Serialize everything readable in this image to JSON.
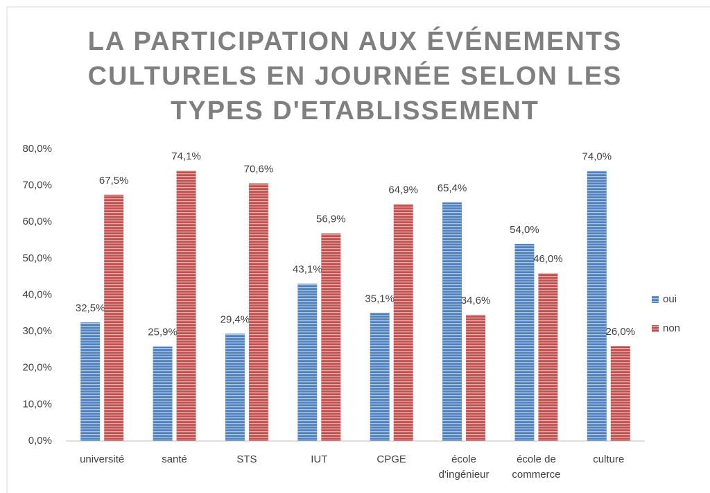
{
  "chart_data": {
    "type": "bar",
    "title": [
      "LA PARTICIPATION AUX ÉVÉNEMENTS",
      "CULTURELS EN JOURNÉE SELON LES",
      "TYPES D'ETABLISSEMENT"
    ],
    "categories": [
      "université",
      "santé",
      "STS",
      "IUT",
      "CPGE",
      "école d'ingénieur",
      "école de commerce",
      "culture"
    ],
    "series": [
      {
        "name": "oui",
        "color": "#4f81bd",
        "values": [
          32.5,
          25.9,
          29.4,
          43.1,
          35.1,
          65.4,
          54.0,
          74.0
        ],
        "value_labels": [
          "32,5%",
          "25,9%",
          "29,4%",
          "43,1%",
          "35,1%",
          "65,4%",
          "54,0%",
          "74,0%"
        ]
      },
      {
        "name": "non",
        "color": "#c0504d",
        "values": [
          67.5,
          74.1,
          70.6,
          56.9,
          64.9,
          34.6,
          46.0,
          26.0
        ],
        "value_labels": [
          "67,5%",
          "74,1%",
          "70,6%",
          "56,9%",
          "64,9%",
          "34,6%",
          "46,0%",
          "26,0%"
        ]
      }
    ],
    "ylim": [
      0,
      80
    ],
    "yticks": [
      {
        "value": 0,
        "label": "0,0%"
      },
      {
        "value": 10,
        "label": "10,0%"
      },
      {
        "value": 20,
        "label": "20,0%"
      },
      {
        "value": 30,
        "label": "30,0%"
      },
      {
        "value": 40,
        "label": "40,0%"
      },
      {
        "value": 50,
        "label": "50,0%"
      },
      {
        "value": 60,
        "label": "60,0%"
      },
      {
        "value": 70,
        "label": "70,0%"
      },
      {
        "value": 80,
        "label": "80,0%"
      }
    ],
    "grid": false,
    "legend": "right"
  }
}
